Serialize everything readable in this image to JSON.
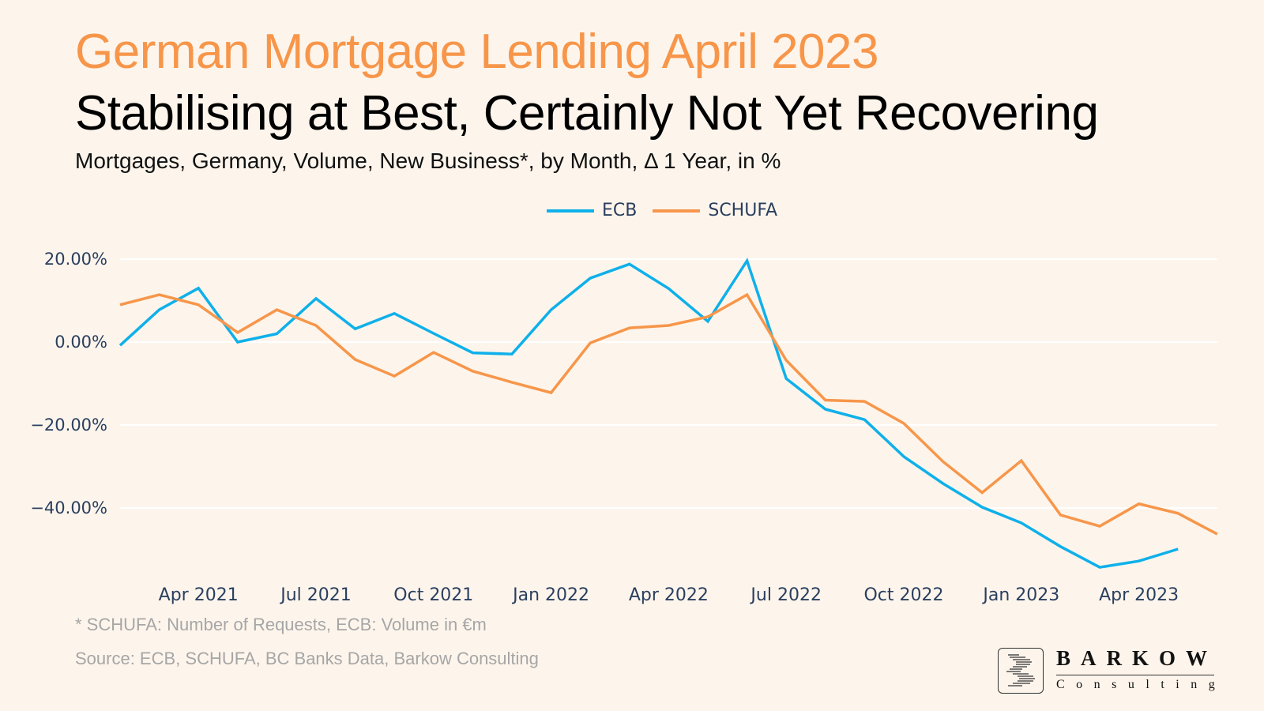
{
  "header": {
    "title": "German Mortgage Lending April 2023",
    "subtitle": "Stabilising at Best, Certainly Not Yet Recovering",
    "caption": "Mortgages, Germany, Volume, New Business*, by Month,  Δ 1 Year, in %"
  },
  "legend": [
    {
      "label": "ECB",
      "color": "#0fb0ea"
    },
    {
      "label": "SCHUFA",
      "color": "#f7964a"
    }
  ],
  "footer": {
    "footnote": "* SCHUFA: Number of Requests, ECB: Volume in €m",
    "source": "Source: ECB, SCHUFA, BC Banks Data, Barkow Consulting"
  },
  "logo": {
    "name": "BARKOW",
    "sub": "Consulting"
  },
  "colors": {
    "background": "#fdf5ec",
    "title": "#f7964a",
    "ecb": "#0fb0ea",
    "schufa": "#f7964a",
    "grid": "#ffffff",
    "tick": "#2a3f5f",
    "footer": "#a6a6a6"
  },
  "chart_data": {
    "type": "line",
    "title": "German Mortgage Lending April 2023",
    "subtitle": "Stabilising at Best, Certainly Not Yet Recovering",
    "ylabel": "Δ 1 Year, in %",
    "xlabel": "",
    "ylim": [
      -58,
      24
    ],
    "yticks": [
      20,
      0,
      -20,
      -40
    ],
    "ytick_labels": [
      "20.00%",
      "0.00%",
      "−20.00%",
      "−40.00%"
    ],
    "xtick_labels": [
      "Apr 2021",
      "Jul 2021",
      "Oct 2021",
      "Jan 2022",
      "Apr 2022",
      "Jul 2022",
      "Oct 2022",
      "Jan 2023",
      "Apr 2023"
    ],
    "xtick_index": [
      2,
      5,
      8,
      11,
      14,
      17,
      20,
      23,
      26
    ],
    "grid": true,
    "legend_position": "top-center",
    "x": [
      "Feb 2021",
      "Mar 2021",
      "Apr 2021",
      "May 2021",
      "Jun 2021",
      "Jul 2021",
      "Aug 2021",
      "Sep 2021",
      "Oct 2021",
      "Nov 2021",
      "Dec 2021",
      "Jan 2022",
      "Feb 2022",
      "Mar 2022",
      "Apr 2022",
      "May 2022",
      "Jun 2022",
      "Jul 2022",
      "Aug 2022",
      "Sep 2022",
      "Oct 2022",
      "Nov 2022",
      "Dec 2022",
      "Jan 2023",
      "Feb 2023",
      "Mar 2023",
      "Apr 2023",
      "May 2023",
      "Jun 2023"
    ],
    "series": [
      {
        "name": "ECB",
        "color": "#0fb0ea",
        "values": [
          -0.8,
          7.8,
          13.0,
          0.0,
          2.0,
          10.5,
          3.2,
          6.9,
          2.1,
          -2.6,
          -2.9,
          7.8,
          15.4,
          18.8,
          12.9,
          5.0,
          19.6,
          -8.8,
          -16.2,
          -18.7,
          -27.6,
          -34.1,
          -39.8,
          -43.6,
          -49.3,
          -54.3,
          -52.8,
          -49.9,
          null
        ]
      },
      {
        "name": "SCHUFA",
        "color": "#f7964a",
        "values": [
          9.0,
          11.4,
          9.0,
          2.3,
          7.8,
          4.0,
          -4.2,
          -8.2,
          -2.5,
          -7.0,
          -9.7,
          -12.2,
          -0.2,
          3.4,
          4.0,
          6.1,
          11.4,
          -4.4,
          -14.0,
          -14.3,
          -19.6,
          -28.8,
          -36.3,
          -28.6,
          -41.7,
          -44.4,
          -39.0,
          -41.3,
          -46.3
        ]
      }
    ]
  }
}
